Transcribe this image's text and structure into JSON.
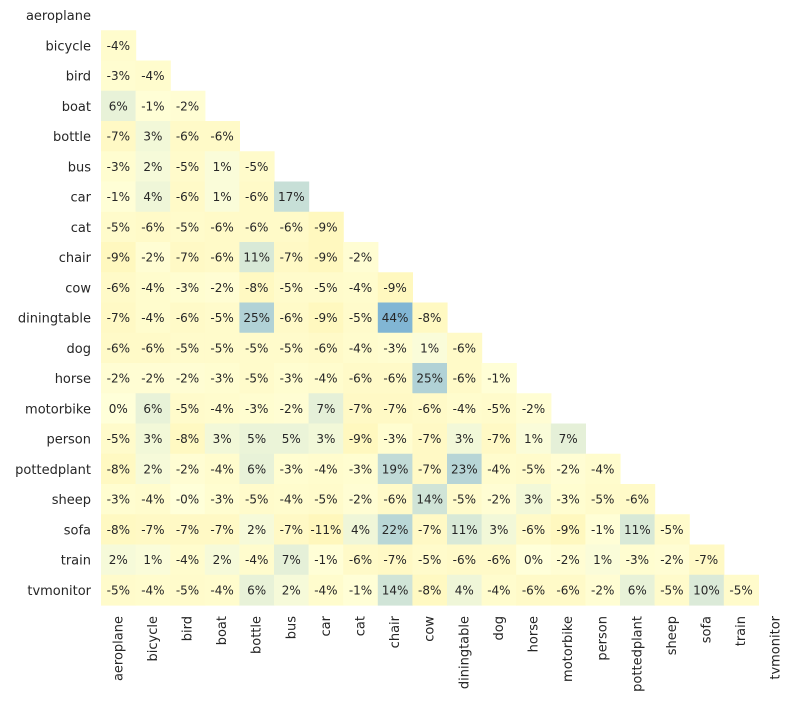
{
  "chart_data": {
    "type": "heatmap",
    "title": "",
    "xlabel": "",
    "ylabel": "",
    "layout": "lower-triangle",
    "value_format": "percent",
    "colormap": {
      "low": "#fff7bc",
      "mid": "#ffffd9",
      "high": "#7fb5d4"
    },
    "categories": [
      "aeroplane",
      "bicycle",
      "bird",
      "boat",
      "bottle",
      "bus",
      "car",
      "cat",
      "chair",
      "cow",
      "diningtable",
      "dog",
      "horse",
      "motorbike",
      "person",
      "pottedplant",
      "sheep",
      "sofa",
      "train",
      "tvmonitor"
    ],
    "rows": [
      [],
      [
        -4
      ],
      [
        -3,
        -4
      ],
      [
        6,
        -1,
        -2
      ],
      [
        -7,
        3,
        -6,
        -6
      ],
      [
        -3,
        2,
        -5,
        1,
        -5
      ],
      [
        -1,
        4,
        -6,
        1,
        -6,
        17
      ],
      [
        -5,
        -6,
        -5,
        -6,
        -6,
        -6,
        -9
      ],
      [
        -9,
        -2,
        -7,
        -6,
        11,
        -7,
        -9,
        -2
      ],
      [
        -6,
        -4,
        -3,
        -2,
        -8,
        -5,
        -5,
        -4,
        -9
      ],
      [
        -7,
        -4,
        -6,
        -5,
        25,
        -6,
        -9,
        -5,
        44,
        -8
      ],
      [
        -6,
        -6,
        -5,
        -5,
        -5,
        -5,
        -6,
        -4,
        -3,
        1,
        -6
      ],
      [
        -2,
        -2,
        -2,
        -3,
        -5,
        -3,
        -4,
        -6,
        -6,
        25,
        -6,
        -1
      ],
      [
        0,
        6,
        -5,
        -4,
        -3,
        -2,
        7,
        -7,
        -7,
        -6,
        -4,
        -5,
        -2
      ],
      [
        -5,
        3,
        -8,
        3,
        5,
        5,
        3,
        -9,
        -3,
        -7,
        3,
        -7,
        1,
        7
      ],
      [
        -8,
        2,
        -2,
        -4,
        6,
        -3,
        -4,
        -3,
        19,
        -7,
        23,
        -4,
        -5,
        -2,
        -4
      ],
      [
        -3,
        -4,
        0,
        -3,
        -5,
        -4,
        -5,
        -2,
        -6,
        14,
        -5,
        -2,
        3,
        -3,
        -5,
        -6
      ],
      [
        -8,
        -7,
        -7,
        -7,
        2,
        -7,
        -11,
        4,
        22,
        -7,
        11,
        3,
        -6,
        -9,
        -1,
        11,
        -5
      ],
      [
        2,
        1,
        -4,
        2,
        -4,
        7,
        -1,
        -6,
        -7,
        -5,
        -6,
        -6,
        0,
        -2,
        1,
        -3,
        -2,
        -7
      ],
      [
        -5,
        -4,
        -5,
        -4,
        6,
        2,
        -4,
        -1,
        14,
        -8,
        4,
        -4,
        -6,
        -6,
        -2,
        6,
        -5,
        10,
        -5
      ]
    ],
    "negative_zero_cells": [
      [
        16,
        2
      ]
    ]
  }
}
